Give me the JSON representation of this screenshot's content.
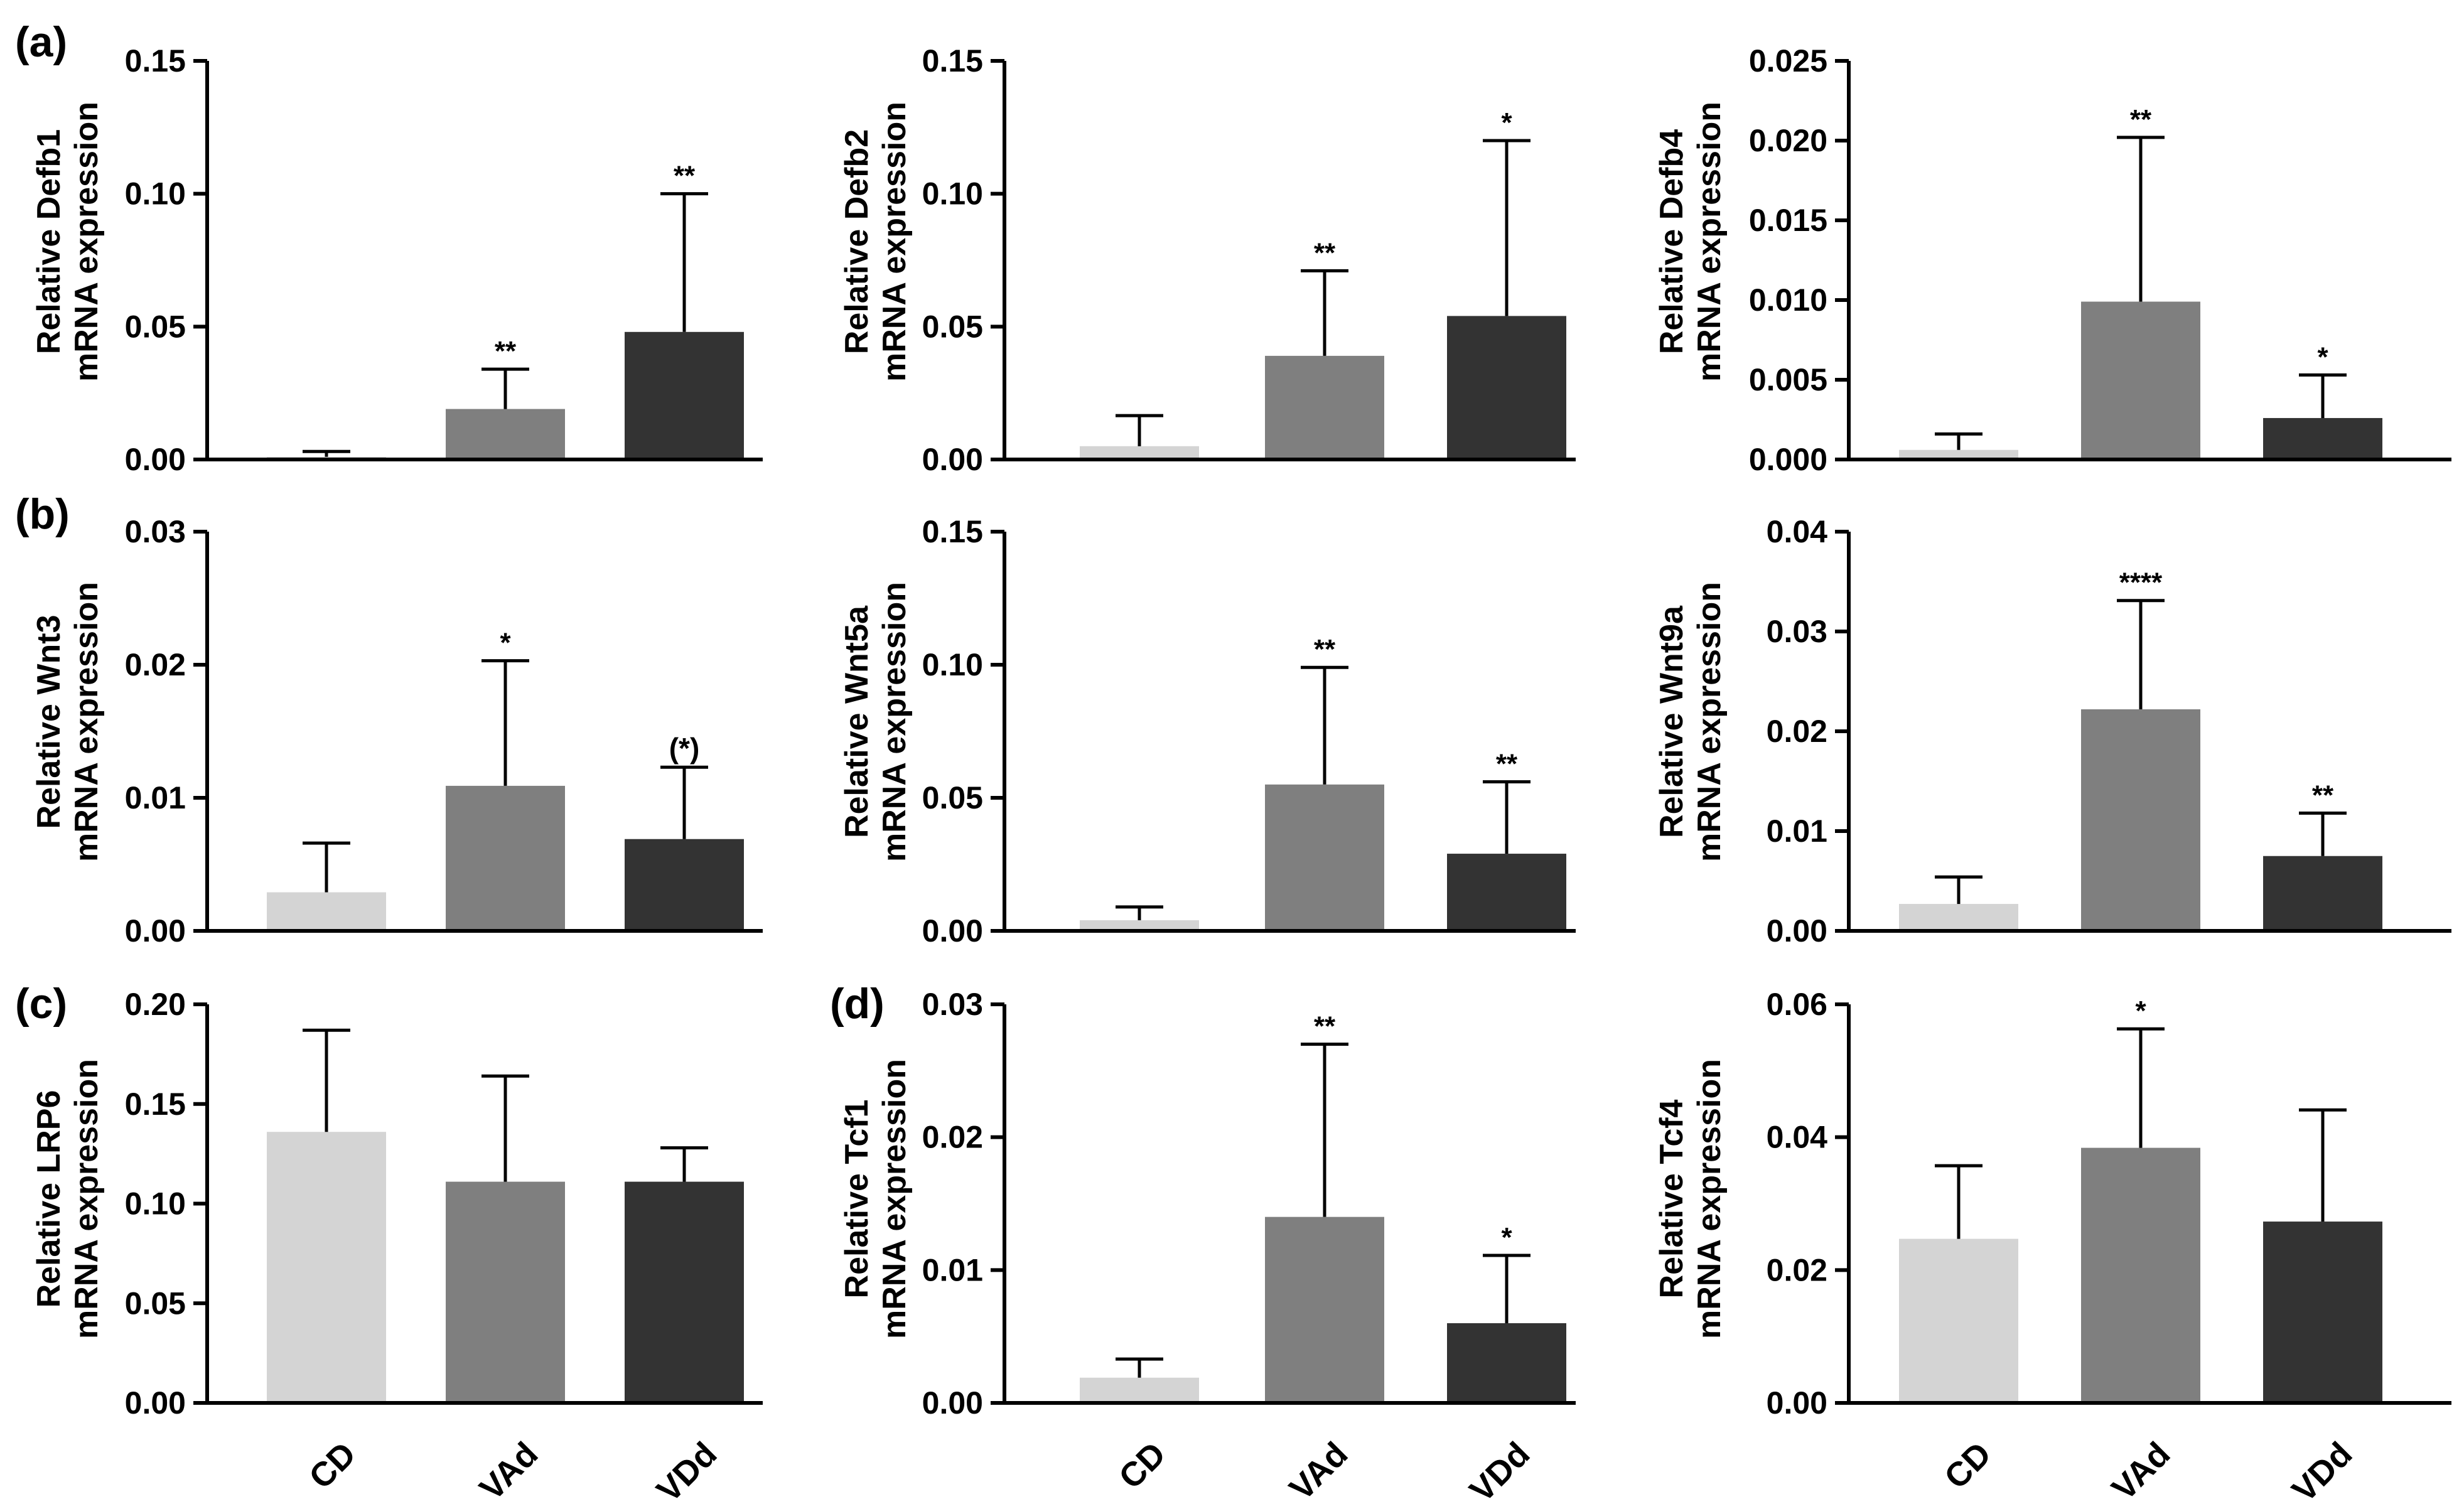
{
  "chart_data": [
    {
      "type": "bar",
      "panel_label": "(a)",
      "ylabel_line1": "Relative Defb1",
      "ylabel_line2": "mRNA expression",
      "ylim": [
        0,
        0.15
      ],
      "yticks": [
        "0.00",
        "0.05",
        "0.10",
        "0.15"
      ],
      "categories": [
        "CD",
        "VAd",
        "VDd"
      ],
      "values": [
        0.001,
        0.019,
        0.048
      ],
      "errors": [
        0.002,
        0.015,
        0.052
      ],
      "significance": [
        "",
        "**",
        "**"
      ]
    },
    {
      "type": "bar",
      "panel_label": "",
      "ylabel_line1": "Relative Defb2",
      "ylabel_line2": "mRNA expression",
      "ylim": [
        0,
        0.15
      ],
      "yticks": [
        "0.00",
        "0.05",
        "0.10",
        "0.15"
      ],
      "categories": [
        "CD",
        "VAd",
        "VDd"
      ],
      "values": [
        0.005,
        0.039,
        0.054
      ],
      "errors": [
        0.0115,
        0.032,
        0.066
      ],
      "significance": [
        "",
        "**",
        "*"
      ]
    },
    {
      "type": "bar",
      "panel_label": "",
      "ylabel_line1": "Relative Defb4",
      "ylabel_line2": "mRNA expression",
      "ylim": [
        0,
        0.025
      ],
      "yticks": [
        "0.000",
        "0.005",
        "0.010",
        "0.015",
        "0.020",
        "0.025"
      ],
      "categories": [
        "CD",
        "VAd",
        "VDd"
      ],
      "values": [
        0.0006,
        0.0099,
        0.0026
      ],
      "errors": [
        0.001,
        0.0103,
        0.0027
      ],
      "significance": [
        "",
        "**",
        "*"
      ]
    },
    {
      "type": "bar",
      "panel_label": "(b)",
      "ylabel_line1": "Relative Wnt3",
      "ylabel_line2": "mRNA expression",
      "ylim": [
        0,
        0.03
      ],
      "yticks": [
        "0.00",
        "0.01",
        "0.02",
        "0.03"
      ],
      "categories": [
        "CD",
        "VAd",
        "VDd"
      ],
      "values": [
        0.0029,
        0.0109,
        0.0069
      ],
      "errors": [
        0.0037,
        0.0094,
        0.0054
      ],
      "significance": [
        "",
        "*",
        "(*)"
      ]
    },
    {
      "type": "bar",
      "panel_label": "",
      "ylabel_line1": "Relative Wnt5a",
      "ylabel_line2": "mRNA expression",
      "ylim": [
        0,
        0.15
      ],
      "yticks": [
        "0.00",
        "0.05",
        "0.10",
        "0.15"
      ],
      "categories": [
        "CD",
        "VAd",
        "VDd"
      ],
      "values": [
        0.004,
        0.055,
        0.029
      ],
      "errors": [
        0.005,
        0.044,
        0.027
      ],
      "significance": [
        "",
        "**",
        "**"
      ]
    },
    {
      "type": "bar",
      "panel_label": "",
      "ylabel_line1": "Relative Wnt9a",
      "ylabel_line2": "mRNA expression",
      "ylim": [
        0,
        0.04
      ],
      "yticks": [
        "0.00",
        "0.01",
        "0.02",
        "0.03",
        "0.04"
      ],
      "categories": [
        "CD",
        "VAd",
        "VDd"
      ],
      "values": [
        0.0027,
        0.0222,
        0.0075
      ],
      "errors": [
        0.0027,
        0.0109,
        0.0043
      ],
      "significance": [
        "",
        "****",
        "**"
      ]
    },
    {
      "type": "bar",
      "panel_label": "(c)",
      "ylabel_line1": "Relative LRP6",
      "ylabel_line2": "mRNA expression",
      "ylim": [
        0,
        0.2
      ],
      "yticks": [
        "0.00",
        "0.05",
        "0.10",
        "0.15",
        "0.20"
      ],
      "categories": [
        "CD",
        "VAd",
        "VDd"
      ],
      "values": [
        0.136,
        0.111,
        0.111
      ],
      "errors": [
        0.051,
        0.053,
        0.017
      ],
      "significance": [
        "",
        "",
        ""
      ]
    },
    {
      "type": "bar",
      "panel_label": "(d)",
      "ylabel_line1": "Relative Tcf1",
      "ylabel_line2": "mRNA expression",
      "ylim": [
        0,
        0.03
      ],
      "yticks": [
        "0.00",
        "0.01",
        "0.02",
        "0.03"
      ],
      "categories": [
        "CD",
        "VAd",
        "VDd"
      ],
      "values": [
        0.0019,
        0.014,
        0.006
      ],
      "errors": [
        0.0014,
        0.013,
        0.0051
      ],
      "significance": [
        "",
        "**",
        "*"
      ]
    },
    {
      "type": "bar",
      "panel_label": "",
      "ylabel_line1": "Relative Tcf4",
      "ylabel_line2": "mRNA expression",
      "ylim": [
        0,
        0.06
      ],
      "yticks": [
        "0.00",
        "0.02",
        "0.04",
        "0.06"
      ],
      "categories": [
        "CD",
        "VAd",
        "VDd"
      ],
      "values": [
        0.0247,
        0.0384,
        0.0273
      ],
      "errors": [
        0.011,
        0.0179,
        0.0168
      ],
      "significance": [
        "",
        "*",
        ""
      ]
    }
  ],
  "x_tick_labels": [
    "CD",
    "VAd",
    "VDd"
  ],
  "bar_colors": [
    "#d4d4d4",
    "#7f7f7f",
    "#333333"
  ],
  "axis_color": "#000000"
}
